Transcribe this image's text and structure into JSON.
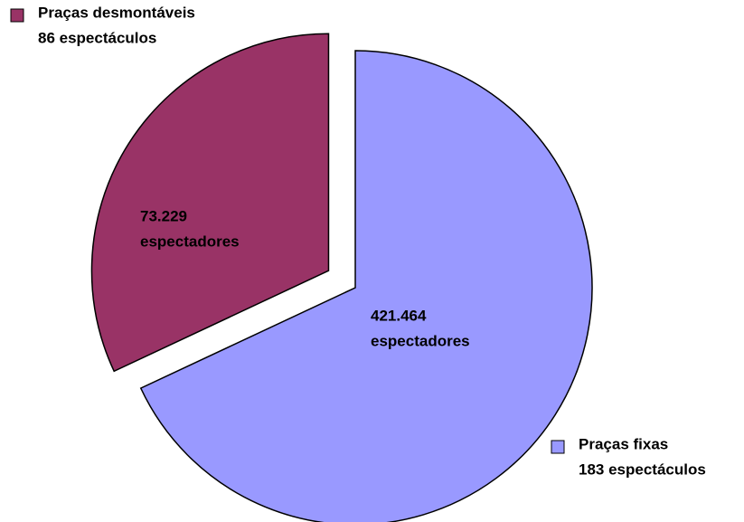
{
  "chart_data": {
    "type": "pie",
    "categories": [
      "Praças fixas",
      "Praças desmontáveis"
    ],
    "values": [
      183,
      86
    ],
    "value_labels": [
      "183 espectáculos",
      "86 espectáculos"
    ],
    "colors": [
      "#9999ff",
      "#993366"
    ],
    "spectators": [
      421464,
      73229
    ],
    "spectator_labels": [
      "421.464",
      "73.229"
    ],
    "spectator_unit": "espectadores"
  }
}
